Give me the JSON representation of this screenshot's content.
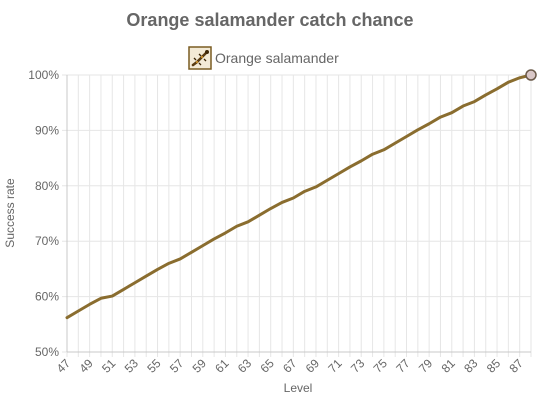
{
  "chart_data": {
    "type": "line",
    "title": "Orange salamander catch chance",
    "xlabel": "Level",
    "ylabel": "Success rate",
    "xlim": [
      47,
      88
    ],
    "ylim": [
      50,
      100
    ],
    "y_ticks": [
      50,
      60,
      70,
      80,
      90,
      100
    ],
    "y_tick_format": "{v}%",
    "x_ticks": [
      47,
      49,
      51,
      53,
      55,
      57,
      59,
      61,
      63,
      65,
      67,
      69,
      71,
      73,
      75,
      77,
      79,
      81,
      83,
      85,
      87
    ],
    "grid": true,
    "legend_position": "top",
    "series": [
      {
        "name": "Orange salamander",
        "icon": "orange-salamander-icon",
        "color": "#8a6d2f",
        "x": [
          47,
          48,
          49,
          50,
          51,
          52,
          53,
          54,
          55,
          56,
          57,
          58,
          59,
          60,
          61,
          62,
          63,
          64,
          65,
          66,
          67,
          68,
          69,
          70,
          71,
          72,
          73,
          74,
          75,
          76,
          77,
          78,
          79,
          80,
          81,
          82,
          83,
          84,
          85,
          86,
          87,
          88
        ],
        "values": [
          56.2,
          57.4,
          58.6,
          59.7,
          60.1,
          61.3,
          62.5,
          63.7,
          64.9,
          66.0,
          66.8,
          68.0,
          69.2,
          70.4,
          71.5,
          72.7,
          73.5,
          74.7,
          75.9,
          77.0,
          77.8,
          79.0,
          79.8,
          81.0,
          82.2,
          83.4,
          84.5,
          85.7,
          86.5,
          87.7,
          88.9,
          90.1,
          91.2,
          92.4,
          93.2,
          94.4,
          95.2,
          96.4,
          97.5,
          98.7,
          99.5,
          100.0
        ]
      }
    ]
  }
}
